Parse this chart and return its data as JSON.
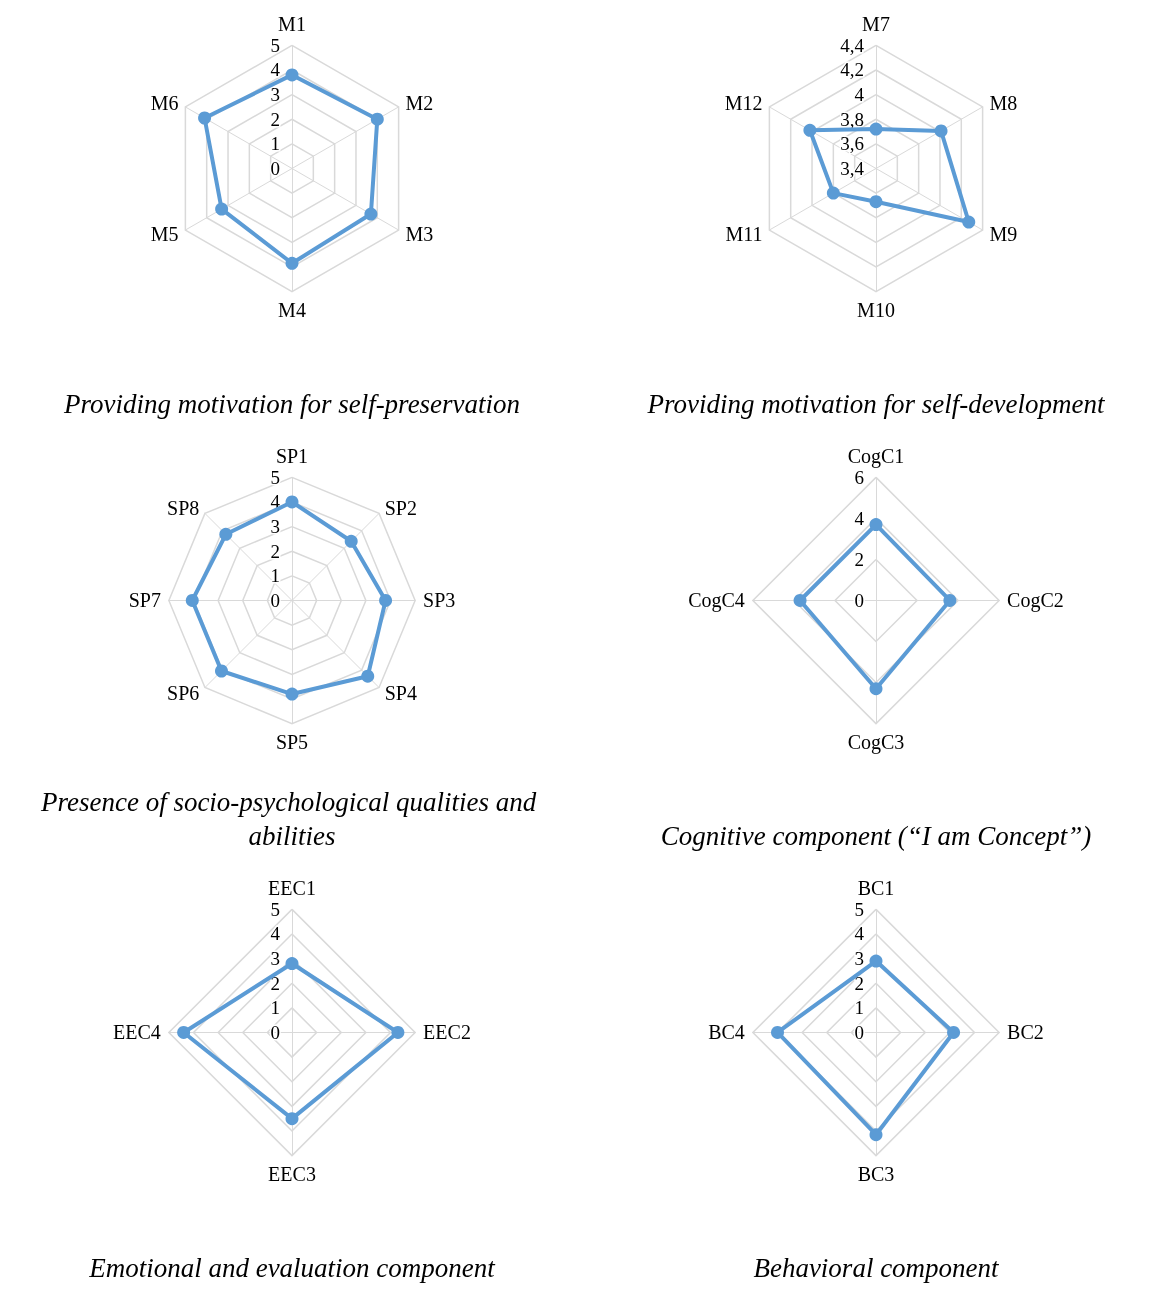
{
  "chart_data": [
    {
      "type": "radar",
      "title": "Providing motivation for self-preservation",
      "categories": [
        "M1",
        "M2",
        "M3",
        "M4",
        "M5",
        "M6"
      ],
      "series": [
        {
          "color": "#5b9bd5",
          "values": [
            3.8,
            4.0,
            3.7,
            3.85,
            3.3,
            4.1
          ]
        }
      ],
      "ylim": [
        0,
        5
      ],
      "yticks": [
        0,
        1,
        2,
        3,
        4,
        5
      ],
      "grid": true,
      "marker": "circle"
    },
    {
      "type": "radar",
      "title": "Providing motivation for self-development",
      "categories": [
        "M7",
        "M8",
        "M9",
        "M10",
        "M11",
        "M12"
      ],
      "series": [
        {
          "color": "#5b9bd5",
          "values": [
            3.72,
            4.01,
            4.27,
            3.67,
            3.8,
            4.02
          ]
        }
      ],
      "ylim": [
        3.4,
        4.4
      ],
      "yticks": [
        {
          "value": 3.4,
          "label": "3,4"
        },
        {
          "value": 3.6,
          "label": "3,6"
        },
        {
          "value": 3.8,
          "label": "3,8"
        },
        {
          "value": 4,
          "label": "4"
        },
        {
          "value": 4.2,
          "label": "4,2"
        },
        {
          "value": 4.4,
          "label": "4,4"
        }
      ],
      "grid": true,
      "marker": "circle"
    },
    {
      "type": "radar",
      "title": "Presence of socio-psychological qualities and abilities",
      "categories": [
        "SP1",
        "SP2",
        "SP3",
        "SP4",
        "SP5",
        "SP6",
        "SP7",
        "SP8"
      ],
      "series": [
        {
          "color": "#5b9bd5",
          "values": [
            4.0,
            3.4,
            3.8,
            4.35,
            3.8,
            4.05,
            4.05,
            3.8
          ]
        }
      ],
      "ylim": [
        0,
        5
      ],
      "yticks": [
        0,
        1,
        2,
        3,
        4,
        5
      ],
      "grid": true,
      "marker": "circle"
    },
    {
      "type": "radar",
      "title": "Cognitive component (“I am Concept”)",
      "categories": [
        "CogC1",
        "CogC2",
        "CogC3",
        "CogC4"
      ],
      "series": [
        {
          "color": "#5b9bd5",
          "values": [
            3.7,
            3.6,
            4.3,
            3.7
          ]
        }
      ],
      "ylim": [
        0,
        6
      ],
      "yticks": [
        0,
        2,
        4,
        6
      ],
      "grid": true,
      "marker": "circle"
    },
    {
      "type": "radar",
      "title": "Emotional and evaluation component",
      "categories": [
        "EEC1",
        "EEC2",
        "EEC3",
        "EEC4"
      ],
      "series": [
        {
          "color": "#5b9bd5",
          "values": [
            2.8,
            4.3,
            3.5,
            4.4
          ]
        }
      ],
      "ylim": [
        0,
        5
      ],
      "yticks": [
        0,
        1,
        2,
        3,
        4,
        5
      ],
      "grid": true,
      "marker": "circle"
    },
    {
      "type": "radar",
      "title": "Behavioral component",
      "categories": [
        "BC1",
        "BC2",
        "BC3",
        "BC4"
      ],
      "series": [
        {
          "color": "#5b9bd5",
          "values": [
            2.9,
            3.15,
            4.15,
            4.0
          ]
        }
      ],
      "ylim": [
        0,
        5
      ],
      "yticks": [
        0,
        1,
        2,
        3,
        4,
        5
      ],
      "grid": true,
      "marker": "circle"
    }
  ]
}
